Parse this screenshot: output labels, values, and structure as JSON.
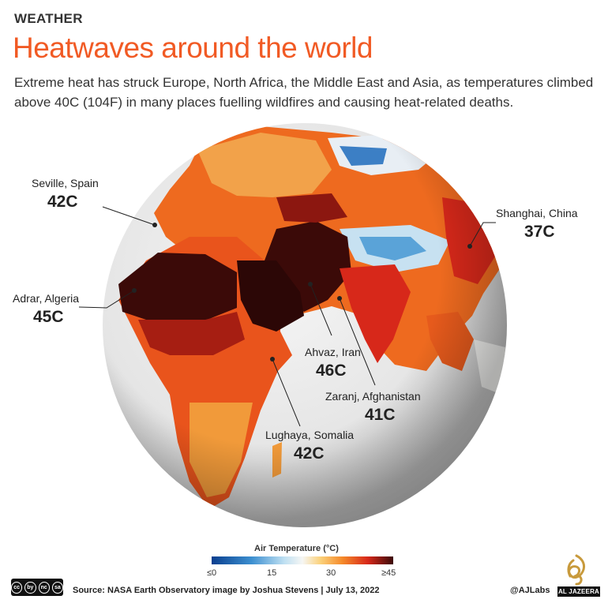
{
  "header": {
    "kicker": "WEATHER",
    "title": "Heatwaves around the world",
    "subtitle": "Extreme heat has struck Europe, North Africa, the Middle East and Asia, as temperatures climbed above 40C (104F) in many places fuelling wildfires and causing heat-related deaths."
  },
  "cities": [
    {
      "name": "Seville, Spain",
      "temp": "42C"
    },
    {
      "name": "Adrar, Algeria",
      "temp": "45C"
    },
    {
      "name": "Shanghai, China",
      "temp": "37C"
    },
    {
      "name": "Ahvaz, Iran",
      "temp": "46C"
    },
    {
      "name": "Zaranj, Afghanistan",
      "temp": "41C"
    },
    {
      "name": "Lughaya, Somalia",
      "temp": "42C"
    }
  ],
  "legend": {
    "title": "Air Temperature (°C)",
    "ticks": [
      "≤0",
      "15",
      "30",
      "≥45"
    ]
  },
  "footer": {
    "license_icons": [
      "cc",
      "by",
      "nc",
      "sa"
    ],
    "source": "Source: NASA Earth Observatory image by Joshua Stevens  |  July 13, 2022",
    "handle": "@AJLabs",
    "logo": "AL JAZEERA"
  },
  "colors": {
    "accent": "#f15a24",
    "hot": "#d7281a",
    "extreme": "#3b0a08",
    "cool": "#3c8fd0"
  }
}
